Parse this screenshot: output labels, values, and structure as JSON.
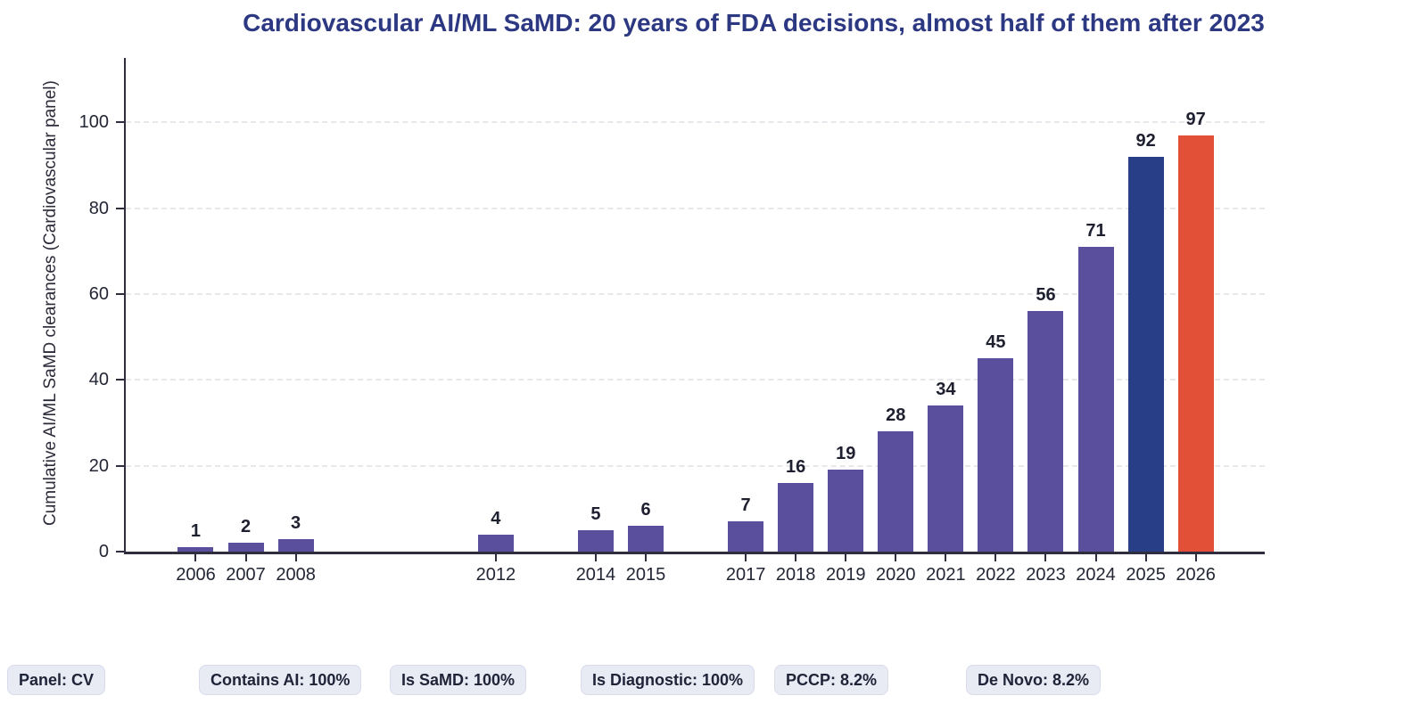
{
  "chart_data": {
    "type": "bar",
    "title": "Cardiovascular AI/ML SaMD: 20 years of FDA decisions, almost half of them after 2023",
    "xlabel": "",
    "ylabel": "Cumulative AI/ML SaMD clearances (Cardiovascular panel)",
    "x": [
      2006,
      2007,
      2008,
      2012,
      2014,
      2015,
      2017,
      2018,
      2019,
      2020,
      2021,
      2022,
      2023,
      2024,
      2025,
      2026
    ],
    "values": [
      1,
      2,
      3,
      4,
      5,
      6,
      7,
      16,
      19,
      28,
      34,
      45,
      56,
      71,
      92,
      97
    ],
    "xlim": [
      2004.6,
      2027.38
    ],
    "ylim": [
      0,
      115
    ],
    "yticks": [
      0,
      20,
      40,
      60,
      80,
      100
    ],
    "grid": {
      "axis": "y",
      "style": "dashed",
      "color": "#e7e7ec"
    },
    "legend": "none",
    "colors": {
      "bar_default": "#5a4f9d",
      "bar_overrides": {
        "2025": "#283e86",
        "2026": "#e35038"
      },
      "title": "#2d3882",
      "value_label": "#1e2030",
      "axis": "#2e2e3e",
      "tick_label": "#232634"
    }
  },
  "footer_badges": [
    {
      "label": "Panel: CV"
    },
    {
      "label": "Contains AI: 100%"
    },
    {
      "label": "Is SaMD: 100%"
    },
    {
      "label": "Is Diagnostic: 100%"
    },
    {
      "label": "PCCP: 8.2%"
    },
    {
      "label": "De Novo: 8.2%"
    }
  ]
}
